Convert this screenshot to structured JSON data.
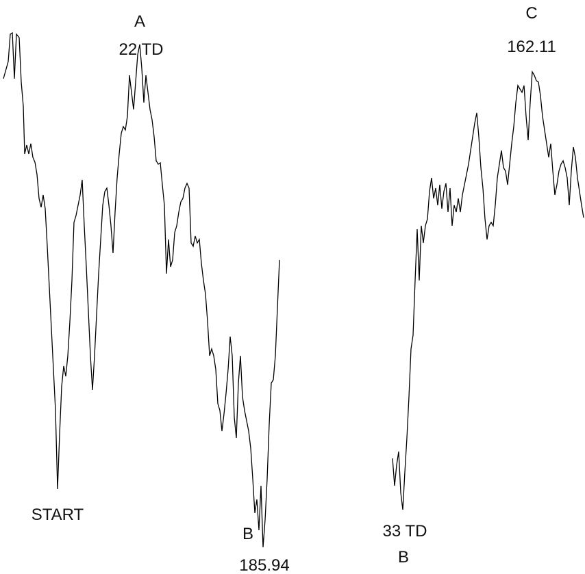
{
  "chart_data": {
    "type": "line",
    "title": "",
    "xlabel": "",
    "ylabel": "",
    "grid": false,
    "legend": "none",
    "line_color": "#000000",
    "series": [
      {
        "values": [
          [
            5,
            115
          ],
          [
            12,
            90
          ],
          [
            15,
            50
          ],
          [
            18,
            48
          ],
          [
            21,
            115
          ],
          [
            24,
            50
          ],
          [
            28,
            55
          ],
          [
            31,
            120
          ],
          [
            34,
            155
          ],
          [
            36,
            225
          ],
          [
            39,
            212
          ],
          [
            42,
            225
          ],
          [
            45,
            210
          ],
          [
            48,
            230
          ],
          [
            51,
            237
          ],
          [
            54,
            255
          ],
          [
            57,
            290
          ],
          [
            60,
            303
          ],
          [
            63,
            285
          ],
          [
            66,
            305
          ],
          [
            69,
            360
          ],
          [
            72,
            420
          ],
          [
            75,
            480
          ],
          [
            78,
            540
          ],
          [
            81,
            600
          ],
          [
            84,
            715
          ],
          [
            87,
            635
          ],
          [
            90,
            565
          ],
          [
            93,
            535
          ],
          [
            96,
            550
          ],
          [
            99,
            520
          ],
          [
            102,
            470
          ],
          [
            105,
            410
          ],
          [
            108,
            325
          ],
          [
            111,
            315
          ],
          [
            114,
            300
          ],
          [
            117,
            285
          ],
          [
            120,
            263
          ],
          [
            123,
            330
          ],
          [
            126,
            390
          ],
          [
            129,
            455
          ],
          [
            132,
            520
          ],
          [
            135,
            570
          ],
          [
            138,
            520
          ],
          [
            141,
            460
          ],
          [
            144,
            400
          ],
          [
            147,
            350
          ],
          [
            150,
            300
          ],
          [
            153,
            280
          ],
          [
            156,
            275
          ],
          [
            159,
            300
          ],
          [
            162,
            330
          ],
          [
            165,
            370
          ],
          [
            168,
            310
          ],
          [
            171,
            260
          ],
          [
            174,
            225
          ],
          [
            177,
            195
          ],
          [
            180,
            185
          ],
          [
            183,
            190
          ],
          [
            186,
            170
          ],
          [
            189,
            110
          ],
          [
            192,
            135
          ],
          [
            195,
            160
          ],
          [
            198,
            120
          ],
          [
            201,
            80
          ],
          [
            204,
            65
          ],
          [
            207,
            100
          ],
          [
            210,
            150
          ],
          [
            213,
            110
          ],
          [
            216,
            135
          ],
          [
            219,
            160
          ],
          [
            222,
            175
          ],
          [
            225,
            200
          ],
          [
            228,
            235
          ],
          [
            231,
            240
          ],
          [
            234,
            238
          ],
          [
            237,
            270
          ],
          [
            240,
            300
          ],
          [
            243,
            400
          ],
          [
            246,
            350
          ],
          [
            249,
            390
          ],
          [
            252,
            380
          ],
          [
            255,
            340
          ],
          [
            258,
            330
          ],
          [
            261,
            310
          ],
          [
            264,
            295
          ],
          [
            267,
            290
          ],
          [
            270,
            275
          ],
          [
            273,
            268
          ],
          [
            276,
            275
          ],
          [
            279,
            355
          ],
          [
            282,
            360
          ],
          [
            285,
            345
          ],
          [
            288,
            355
          ],
          [
            291,
            350
          ],
          [
            294,
            385
          ],
          [
            297,
            410
          ],
          [
            300,
            430
          ],
          [
            303,
            470
          ],
          [
            306,
            520
          ],
          [
            309,
            510
          ],
          [
            312,
            520
          ],
          [
            315,
            540
          ],
          [
            318,
            590
          ],
          [
            321,
            600
          ],
          [
            324,
            630
          ],
          [
            327,
            605
          ],
          [
            330,
            575
          ],
          [
            333,
            540
          ],
          [
            336,
            492
          ],
          [
            339,
            520
          ],
          [
            342,
            610
          ],
          [
            345,
            640
          ],
          [
            348,
            560
          ],
          [
            351,
            520
          ],
          [
            354,
            580
          ],
          [
            357,
            600
          ],
          [
            360,
            615
          ],
          [
            363,
            630
          ],
          [
            366,
            655
          ],
          [
            369,
            700
          ],
          [
            372,
            750
          ],
          [
            375,
            730
          ],
          [
            378,
            775
          ],
          [
            381,
            710
          ],
          [
            384,
            800
          ],
          [
            387,
            760
          ],
          [
            390,
            700
          ],
          [
            393,
            620
          ],
          [
            396,
            560
          ],
          [
            399,
            555
          ],
          [
            402,
            520
          ],
          [
            405,
            450
          ],
          [
            408,
            380
          ],
          null,
          [
            573,
            670
          ],
          [
            576,
            710
          ],
          [
            579,
            680
          ],
          [
            582,
            660
          ],
          [
            585,
            720
          ],
          [
            588,
            745
          ],
          [
            591,
            690
          ],
          [
            594,
            640
          ],
          [
            597,
            580
          ],
          [
            600,
            510
          ],
          [
            603,
            490
          ],
          [
            606,
            410
          ],
          [
            609,
            335
          ],
          [
            612,
            410
          ],
          [
            615,
            330
          ],
          [
            618,
            355
          ],
          [
            621,
            330
          ],
          [
            624,
            320
          ],
          [
            627,
            280
          ],
          [
            630,
            260
          ],
          [
            633,
            290
          ],
          [
            636,
            275
          ],
          [
            639,
            300
          ],
          [
            642,
            270
          ],
          [
            645,
            305
          ],
          [
            648,
            280
          ],
          [
            651,
            268
          ],
          [
            654,
            310
          ],
          [
            657,
            275
          ],
          [
            660,
            330
          ],
          [
            663,
            300
          ],
          [
            666,
            310
          ],
          [
            669,
            290
          ],
          [
            672,
            310
          ],
          [
            675,
            285
          ],
          [
            678,
            270
          ],
          [
            681,
            255
          ],
          [
            684,
            240
          ],
          [
            687,
            220
          ],
          [
            690,
            200
          ],
          [
            693,
            180
          ],
          [
            696,
            165
          ],
          [
            699,
            200
          ],
          [
            702,
            245
          ],
          [
            705,
            275
          ],
          [
            708,
            320
          ],
          [
            711,
            350
          ],
          [
            714,
            330
          ],
          [
            717,
            325
          ],
          [
            720,
            330
          ],
          [
            723,
            300
          ],
          [
            726,
            260
          ],
          [
            729,
            240
          ],
          [
            732,
            220
          ],
          [
            735,
            245
          ],
          [
            738,
            250
          ],
          [
            741,
            270
          ],
          [
            744,
            240
          ],
          [
            747,
            210
          ],
          [
            750,
            185
          ],
          [
            753,
            150
          ],
          [
            756,
            125
          ],
          [
            759,
            130
          ],
          [
            762,
            135
          ],
          [
            765,
            125
          ],
          [
            768,
            170
          ],
          [
            771,
            205
          ],
          [
            774,
            150
          ],
          [
            777,
            105
          ],
          [
            780,
            110
          ],
          [
            783,
            118
          ],
          [
            786,
            120
          ],
          [
            789,
            140
          ],
          [
            792,
            170
          ],
          [
            795,
            190
          ],
          [
            798,
            210
          ],
          [
            801,
            230
          ],
          [
            804,
            210
          ],
          [
            807,
            250
          ],
          [
            810,
            285
          ],
          [
            813,
            270
          ],
          [
            816,
            250
          ],
          [
            819,
            240
          ],
          [
            822,
            235
          ],
          [
            825,
            245
          ],
          [
            828,
            260
          ],
          [
            831,
            300
          ],
          [
            834,
            250
          ],
          [
            837,
            215
          ],
          [
            840,
            230
          ],
          [
            843,
            260
          ],
          [
            846,
            280
          ],
          [
            849,
            300
          ],
          [
            852,
            318
          ]
        ]
      }
    ],
    "annotations": [
      {
        "id": "a-label",
        "text": "A"
      },
      {
        "id": "a-value",
        "text": "22 TD"
      },
      {
        "id": "start-label",
        "text": "START"
      },
      {
        "id": "b1-label",
        "text": "B"
      },
      {
        "id": "b1-value",
        "text": "185.94"
      },
      {
        "id": "b2-value",
        "text": "33 TD"
      },
      {
        "id": "b2-label",
        "text": "B"
      },
      {
        "id": "c-label",
        "text": "C"
      },
      {
        "id": "c-value",
        "text": "162.11"
      }
    ]
  }
}
